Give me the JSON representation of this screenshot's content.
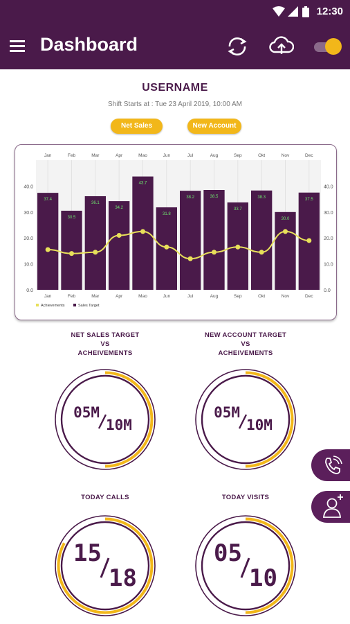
{
  "status": {
    "time": "12:30"
  },
  "appbar": {
    "title": "Dashboard",
    "icons": [
      "menu-icon",
      "sync-icon",
      "cloud-upload-icon",
      "toggle-switch"
    ]
  },
  "header": {
    "username": "USERNAME",
    "shift": "Shift Starts at : Tue 23 April 2019, 10:00 AM"
  },
  "buttons": {
    "net_sales": "Net Sales",
    "new_account": "New Account"
  },
  "colors": {
    "primary": "#4a1a4a",
    "accent": "#f2b71a",
    "bar": "#4a1a4a",
    "line": "#e8e05a",
    "label": "#6ee66e"
  },
  "chart_data": {
    "type": "bar",
    "categories": [
      "Jan",
      "Feb",
      "Mar",
      "Apr",
      "May",
      "Jun",
      "Jul",
      "Aug",
      "Sep",
      "Oct",
      "Nov",
      "Dec"
    ],
    "category_labels": [
      "Jan",
      "Feb",
      "Mar",
      "Apr",
      "Mao",
      "Jun",
      "Jul",
      "Aug",
      "Sep",
      "Okt",
      "Nov",
      "Dec"
    ],
    "series": [
      {
        "name": "Sales Target",
        "type": "bar",
        "values": [
          37.4,
          30.5,
          36.1,
          34.2,
          43.7,
          31.8,
          38.2,
          38.5,
          33.7,
          38.3,
          30.0,
          37.5
        ]
      },
      {
        "name": "Achievements",
        "type": "line",
        "values": [
          15.5,
          14.0,
          14.5,
          21.0,
          22.5,
          16.5,
          12.0,
          14.5,
          16.5,
          14.5,
          22.5,
          19.0
        ]
      }
    ],
    "data_labels": [
      "37.4",
      "30.5",
      "36.1",
      "34.2",
      "43.7",
      "31.8",
      "38.2",
      "38.5",
      "33.7",
      "38.3",
      "30.0",
      "37.5"
    ],
    "yticks": [
      "0.0",
      "10.0",
      "20.0",
      "30.0",
      "40.0"
    ],
    "ylim": [
      0,
      50
    ],
    "legend_position": "bottom-left"
  },
  "gauges": [
    {
      "title_lines": [
        "NET SALES TARGET",
        "VS",
        "ACHEIVEMENTS"
      ],
      "left": "05M",
      "right": "10M",
      "progress": 0.5
    },
    {
      "title_lines": [
        "NEW ACCOUNT TARGET",
        "VS",
        "ACHEIVEMENTS"
      ],
      "left": "05M",
      "right": "10M",
      "progress": 0.5
    },
    {
      "title_lines": [
        "TODAY CALLS"
      ],
      "left": "15",
      "right": "18",
      "progress": 0.83
    },
    {
      "title_lines": [
        "TODAY VISITS"
      ],
      "left": "05",
      "right": "10",
      "progress": 0.5
    }
  ]
}
